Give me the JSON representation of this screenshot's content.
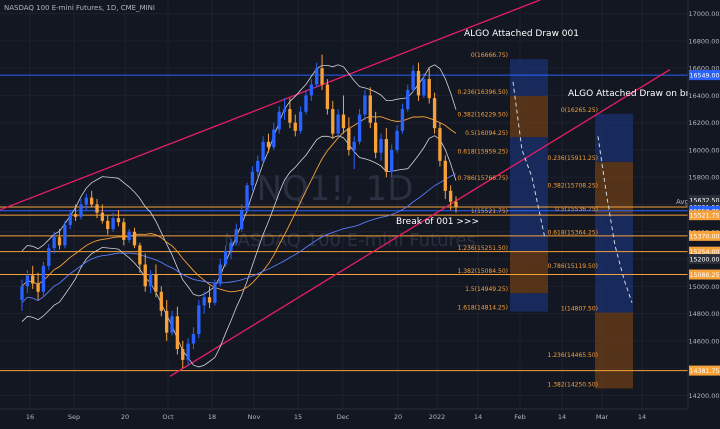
{
  "header": {
    "title": "NASDAQ 100 E-mini Futures, 1D, CME_MINI"
  },
  "watermark": {
    "symbol": "NQ1!, 1D",
    "name": "NASDAQ 100 E-mini Futures"
  },
  "annotations": {
    "algo1": "ALGO Attached Draw 001",
    "algo2": "ALGO Attached Draw on break",
    "break": "Break of 001 >>>",
    "avg": "Avg"
  },
  "colors": {
    "bg": "#131722",
    "up": "#2962ff",
    "down": "#f7a13a",
    "trend": "#e91e63",
    "level": "#f7a13a",
    "blue_level": "#2962ff",
    "zone_blue": "#1e3a8a",
    "zone_orange": "#8a4b12"
  },
  "chart_data": {
    "type": "candlestick",
    "ylim": [
      14100,
      17100
    ],
    "price_ticks": [
      "17000.00",
      "16800.00",
      "16600.00",
      "16400.00",
      "16200.00",
      "16000.00",
      "15800.00",
      "15600.00",
      "15400.00",
      "15200.00",
      "15000.00",
      "14800.00",
      "14600.00",
      "14400.00",
      "14200.00"
    ],
    "x_ticks": [
      "16",
      "Sep",
      "20",
      "Oct",
      "18",
      "Nov",
      "15",
      "Dec",
      "20",
      "2022",
      "14",
      "Feb",
      "14",
      "Mar",
      "14"
    ],
    "price_tags": [
      {
        "label": "16549.00",
        "value": 16549,
        "color": "#2962ff"
      },
      {
        "label": "15632.50",
        "value": 15632.5,
        "color": "#2a2e39"
      },
      {
        "label": "15581.50",
        "value": 15581.5,
        "color": "#2a2e39"
      },
      {
        "label": "15553.75",
        "value": 15553.75,
        "color": "#2962ff"
      },
      {
        "label": "15521.75",
        "value": 15521.75,
        "color": "#f7a13a"
      },
      {
        "label": "15370.00",
        "value": 15370,
        "color": "#f7a13a"
      },
      {
        "label": "15254.00",
        "value": 15254,
        "color": "#f7a13a"
      },
      {
        "label": "15200.00",
        "value": 15200,
        "color": "#2a2e39"
      },
      {
        "label": "15086.25",
        "value": 15086.25,
        "color": "#f7a13a"
      },
      {
        "label": "14381.75",
        "value": 14381.75,
        "color": "#f7a13a"
      }
    ],
    "fib_draw_1": [
      {
        "label": "0(16666.75)",
        "value": 16666.75
      },
      {
        "label": "0.236(16396.50)",
        "value": 16396.5
      },
      {
        "label": "0.382(16229.50)",
        "value": 16229.5
      },
      {
        "label": "0.5(16094.25)",
        "value": 16094.25
      },
      {
        "label": "0.618(15959.25)",
        "value": 15959.25
      },
      {
        "label": "0.786(15766.75)",
        "value": 15766.75
      },
      {
        "label": "1(15521.75)",
        "value": 15521.75
      },
      {
        "label": "1.236(15251.50)",
        "value": 15251.5
      },
      {
        "label": "1.382(15084.50)",
        "value": 15084.5
      },
      {
        "label": "1.5(14949.25)",
        "value": 14949.25
      },
      {
        "label": "1.618(14814.25)",
        "value": 14814.25
      }
    ],
    "fib_draw_2": [
      {
        "label": "0(16265.25)",
        "value": 16265.25
      },
      {
        "label": "0.236(15911.25)",
        "value": 15911.25
      },
      {
        "label": "0.382(15708.25)",
        "value": 15708.25
      },
      {
        "label": "0.5(15536.75)",
        "value": 15536.75
      },
      {
        "label": "0.618(15364.25)",
        "value": 15364.25
      },
      {
        "label": "0.786(15119.50)",
        "value": 15119.5
      },
      {
        "label": "1(14807.50)",
        "value": 14807.5
      },
      {
        "label": "1.236(14465.50)",
        "value": 14465.5
      },
      {
        "label": "1.382(14250.50)",
        "value": 14250.5
      }
    ],
    "candles": [
      [
        14900,
        15050,
        14820,
        15000
      ],
      [
        15000,
        15120,
        14950,
        15080
      ],
      [
        15080,
        15150,
        14980,
        15020
      ],
      [
        15020,
        15100,
        14900,
        14960
      ],
      [
        14960,
        15180,
        14930,
        15150
      ],
      [
        15150,
        15310,
        15120,
        15280
      ],
      [
        15280,
        15400,
        15240,
        15360
      ],
      [
        15360,
        15420,
        15270,
        15300
      ],
      [
        15300,
        15480,
        15280,
        15450
      ],
      [
        15450,
        15560,
        15420,
        15530
      ],
      [
        15530,
        15600,
        15480,
        15510
      ],
      [
        15510,
        15640,
        15490,
        15600
      ],
      [
        15600,
        15680,
        15560,
        15650
      ],
      [
        15650,
        15700,
        15580,
        15600
      ],
      [
        15600,
        15640,
        15500,
        15540
      ],
      [
        15540,
        15600,
        15460,
        15480
      ],
      [
        15480,
        15520,
        15380,
        15420
      ],
      [
        15420,
        15540,
        15400,
        15500
      ],
      [
        15500,
        15560,
        15440,
        15470
      ],
      [
        15470,
        15500,
        15300,
        15340
      ],
      [
        15340,
        15420,
        15320,
        15400
      ],
      [
        15400,
        15430,
        15280,
        15300
      ],
      [
        15300,
        15320,
        15100,
        15160
      ],
      [
        15160,
        15240,
        14960,
        15000
      ],
      [
        15000,
        15120,
        14950,
        15090
      ],
      [
        15090,
        15160,
        14920,
        14960
      ],
      [
        14960,
        15000,
        14780,
        14820
      ],
      [
        14820,
        14900,
        14600,
        14660
      ],
      [
        14660,
        14820,
        14640,
        14780
      ],
      [
        14780,
        14850,
        14500,
        14540
      ],
      [
        14540,
        14600,
        14400,
        14460
      ],
      [
        14460,
        14620,
        14420,
        14580
      ],
      [
        14580,
        14700,
        14540,
        14650
      ],
      [
        14650,
        14900,
        14620,
        14860
      ],
      [
        14860,
        14960,
        14800,
        14920
      ],
      [
        14920,
        15000,
        14840,
        14880
      ],
      [
        14880,
        15050,
        14860,
        15020
      ],
      [
        15020,
        15200,
        15000,
        15160
      ],
      [
        15160,
        15300,
        15140,
        15260
      ],
      [
        15260,
        15350,
        15200,
        15320
      ],
      [
        15320,
        15460,
        15300,
        15420
      ],
      [
        15420,
        15600,
        15400,
        15560
      ],
      [
        15560,
        15760,
        15540,
        15740
      ],
      [
        15740,
        15880,
        15700,
        15840
      ],
      [
        15840,
        15960,
        15800,
        15920
      ],
      [
        15920,
        16100,
        15900,
        16060
      ],
      [
        16060,
        16120,
        15980,
        16020
      ],
      [
        16020,
        16200,
        16000,
        16150
      ],
      [
        16150,
        16320,
        16120,
        16280
      ],
      [
        16280,
        16380,
        16220,
        16300
      ],
      [
        16300,
        16380,
        16160,
        16200
      ],
      [
        16200,
        16260,
        16100,
        16140
      ],
      [
        16140,
        16320,
        16120,
        16280
      ],
      [
        16280,
        16440,
        16260,
        16400
      ],
      [
        16400,
        16520,
        16360,
        16480
      ],
      [
        16480,
        16640,
        16460,
        16600
      ],
      [
        16600,
        16700,
        16440,
        16480
      ],
      [
        16480,
        16520,
        16260,
        16300
      ],
      [
        16300,
        16360,
        16080,
        16120
      ],
      [
        16120,
        16300,
        16100,
        16260
      ],
      [
        16260,
        16400,
        16120,
        16160
      ],
      [
        16160,
        16240,
        15960,
        16000
      ],
      [
        16000,
        16100,
        15860,
        16060
      ],
      [
        16060,
        16300,
        16040,
        16260
      ],
      [
        16260,
        16440,
        16220,
        16400
      ],
      [
        16400,
        16460,
        16160,
        16200
      ],
      [
        16200,
        16280,
        15940,
        15980
      ],
      [
        15980,
        16120,
        15920,
        16080
      ],
      [
        16080,
        16160,
        15800,
        15840
      ],
      [
        15840,
        16040,
        15800,
        16000
      ],
      [
        16000,
        16180,
        15980,
        16140
      ],
      [
        16140,
        16340,
        16120,
        16300
      ],
      [
        16300,
        16480,
        16280,
        16440
      ],
      [
        16440,
        16620,
        16420,
        16580
      ],
      [
        16580,
        16640,
        16360,
        16400
      ],
      [
        16400,
        16560,
        16380,
        16520
      ],
      [
        16520,
        16600,
        16340,
        16380
      ],
      [
        16380,
        16420,
        16120,
        16160
      ],
      [
        16160,
        16200,
        15880,
        15920
      ],
      [
        15920,
        15960,
        15640,
        15700
      ],
      [
        15700,
        15740,
        15560,
        15620
      ],
      [
        15620,
        15660,
        15540,
        15580
      ]
    ]
  }
}
